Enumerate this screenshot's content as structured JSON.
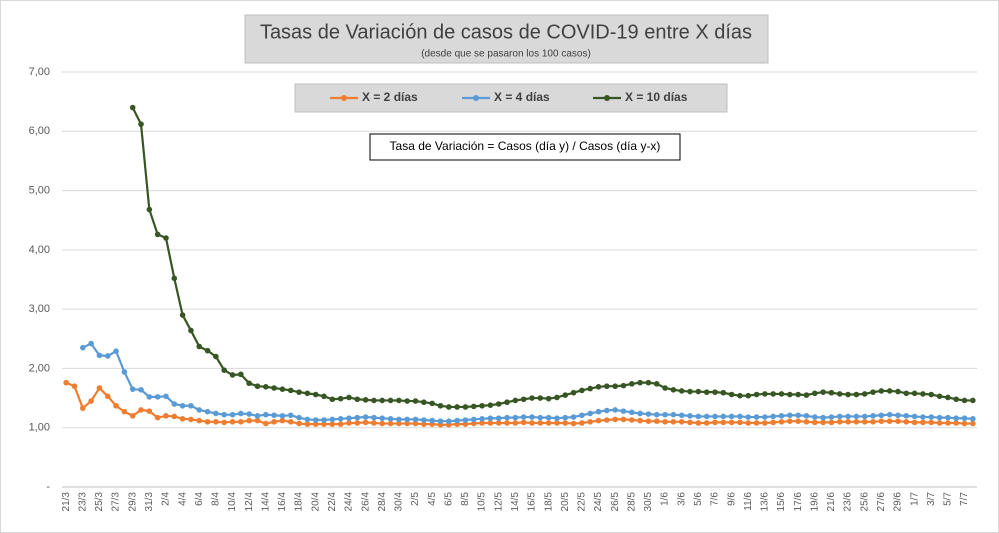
{
  "chart_data": {
    "type": "line",
    "title": "Tasas de Variación de casos de COVID-19 entre X días",
    "subtitle": "(desde que se pasaron los 100 casos)",
    "annotation": "Tasa de Variación = Casos (día y) / Casos (día y-x)",
    "categories": [
      "21/3",
      null,
      "23/3",
      null,
      "25/3",
      null,
      "27/3",
      null,
      "29/3",
      null,
      "31/3",
      null,
      "2/4",
      null,
      "4/4",
      null,
      "6/4",
      null,
      "8/4",
      null,
      "10/4",
      null,
      "12/4",
      null,
      "14/4",
      null,
      "16/4",
      null,
      "18/4",
      null,
      "20/4",
      null,
      "22/4",
      null,
      "24/4",
      null,
      "26/4",
      null,
      "28/4",
      null,
      "30/4",
      null,
      "2/5",
      null,
      "4/5",
      null,
      "6/5",
      null,
      "8/5",
      null,
      "10/5",
      null,
      "12/5",
      null,
      "14/5",
      null,
      "16/5",
      null,
      "18/5",
      null,
      "20/5",
      null,
      "22/5",
      null,
      "24/5",
      null,
      "26/5",
      null,
      "28/5",
      null,
      "30/5",
      null,
      "1/6",
      null,
      "3/6",
      null,
      "5/6",
      null,
      "7/6",
      null,
      "9/6",
      null,
      "11/6",
      null,
      "13/6",
      null,
      "15/6",
      null,
      "17/6",
      null,
      "19/6",
      null,
      "21/6",
      null,
      "23/6",
      null,
      "25/6",
      null,
      "27/6",
      null,
      "29/6",
      null,
      "1/7",
      null,
      "3/7",
      null,
      "5/7",
      null,
      "7/7",
      null
    ],
    "series": [
      {
        "name": "X = 2 días",
        "color": "#ed7d31",
        "values": [
          1.76,
          1.7,
          1.33,
          1.45,
          1.67,
          1.53,
          1.37,
          1.27,
          1.2,
          1.3,
          1.28,
          1.17,
          1.2,
          1.19,
          1.15,
          1.14,
          1.12,
          1.1,
          1.1,
          1.09,
          1.1,
          1.1,
          1.12,
          1.12,
          1.07,
          1.1,
          1.12,
          1.1,
          1.07,
          1.06,
          1.06,
          1.06,
          1.06,
          1.06,
          1.08,
          1.08,
          1.09,
          1.08,
          1.07,
          1.07,
          1.07,
          1.07,
          1.07,
          1.06,
          1.06,
          1.05,
          1.05,
          1.06,
          1.06,
          1.07,
          1.08,
          1.08,
          1.08,
          1.08,
          1.08,
          1.09,
          1.08,
          1.08,
          1.08,
          1.08,
          1.08,
          1.07,
          1.08,
          1.1,
          1.12,
          1.13,
          1.14,
          1.14,
          1.13,
          1.12,
          1.11,
          1.11,
          1.1,
          1.1,
          1.1,
          1.09,
          1.08,
          1.08,
          1.09,
          1.09,
          1.09,
          1.09,
          1.08,
          1.08,
          1.08,
          1.09,
          1.1,
          1.11,
          1.11,
          1.1,
          1.09,
          1.09,
          1.09,
          1.1,
          1.1,
          1.1,
          1.1,
          1.1,
          1.11,
          1.11,
          1.11,
          1.1,
          1.09,
          1.09,
          1.09,
          1.08,
          1.08,
          1.08,
          1.07,
          1.07
        ]
      },
      {
        "name": "X = 4 días",
        "color": "#5b9bd5",
        "values": [
          null,
          null,
          2.35,
          2.42,
          2.22,
          2.21,
          2.29,
          1.94,
          1.65,
          1.64,
          1.52,
          1.52,
          1.53,
          1.4,
          1.37,
          1.37,
          1.3,
          1.27,
          1.24,
          1.22,
          1.22,
          1.24,
          1.23,
          1.2,
          1.22,
          1.21,
          1.2,
          1.21,
          1.17,
          1.14,
          1.13,
          1.13,
          1.14,
          1.15,
          1.16,
          1.17,
          1.18,
          1.17,
          1.16,
          1.15,
          1.14,
          1.14,
          1.14,
          1.13,
          1.12,
          1.11,
          1.11,
          1.12,
          1.13,
          1.14,
          1.15,
          1.16,
          1.16,
          1.17,
          1.17,
          1.18,
          1.18,
          1.17,
          1.17,
          1.16,
          1.17,
          1.18,
          1.21,
          1.24,
          1.27,
          1.29,
          1.3,
          1.28,
          1.26,
          1.24,
          1.23,
          1.22,
          1.22,
          1.22,
          1.21,
          1.2,
          1.19,
          1.19,
          1.19,
          1.19,
          1.19,
          1.19,
          1.18,
          1.18,
          1.18,
          1.19,
          1.2,
          1.21,
          1.21,
          1.2,
          1.18,
          1.17,
          1.18,
          1.19,
          1.19,
          1.19,
          1.19,
          1.2,
          1.21,
          1.22,
          1.21,
          1.2,
          1.19,
          1.18,
          1.18,
          1.17,
          1.17,
          1.16,
          1.16,
          1.15
        ]
      },
      {
        "name": "X = 10 días",
        "color": "#375623",
        "values": [
          null,
          null,
          null,
          null,
          null,
          null,
          null,
          null,
          6.4,
          6.12,
          4.68,
          4.26,
          4.2,
          3.52,
          2.9,
          2.64,
          2.37,
          2.3,
          2.2,
          1.97,
          1.89,
          1.9,
          1.75,
          1.7,
          1.69,
          1.67,
          1.65,
          1.63,
          1.6,
          1.58,
          1.56,
          1.53,
          1.48,
          1.49,
          1.51,
          1.48,
          1.47,
          1.46,
          1.46,
          1.46,
          1.46,
          1.45,
          1.45,
          1.43,
          1.41,
          1.37,
          1.35,
          1.35,
          1.35,
          1.36,
          1.37,
          1.38,
          1.4,
          1.43,
          1.46,
          1.48,
          1.5,
          1.5,
          1.49,
          1.51,
          1.55,
          1.59,
          1.63,
          1.66,
          1.69,
          1.7,
          1.7,
          1.71,
          1.74,
          1.76,
          1.76,
          1.74,
          1.67,
          1.64,
          1.62,
          1.61,
          1.61,
          1.6,
          1.6,
          1.59,
          1.56,
          1.54,
          1.54,
          1.56,
          1.57,
          1.57,
          1.57,
          1.56,
          1.56,
          1.55,
          1.58,
          1.6,
          1.59,
          1.57,
          1.56,
          1.56,
          1.57,
          1.6,
          1.62,
          1.62,
          1.61,
          1.58,
          1.58,
          1.57,
          1.56,
          1.53,
          1.51,
          1.48,
          1.46,
          1.46
        ]
      }
    ],
    "ylim": [
      0,
      7
    ],
    "yticks": [
      {
        "value": 0,
        "label": "-"
      },
      {
        "value": 1,
        "label": "1,00"
      },
      {
        "value": 2,
        "label": "2,00"
      },
      {
        "value": 3,
        "label": "3,00"
      },
      {
        "value": 4,
        "label": "4,00"
      },
      {
        "value": 5,
        "label": "5,00"
      },
      {
        "value": 6,
        "label": "6,00"
      },
      {
        "value": 7,
        "label": "7,00"
      }
    ],
    "grid": true
  }
}
